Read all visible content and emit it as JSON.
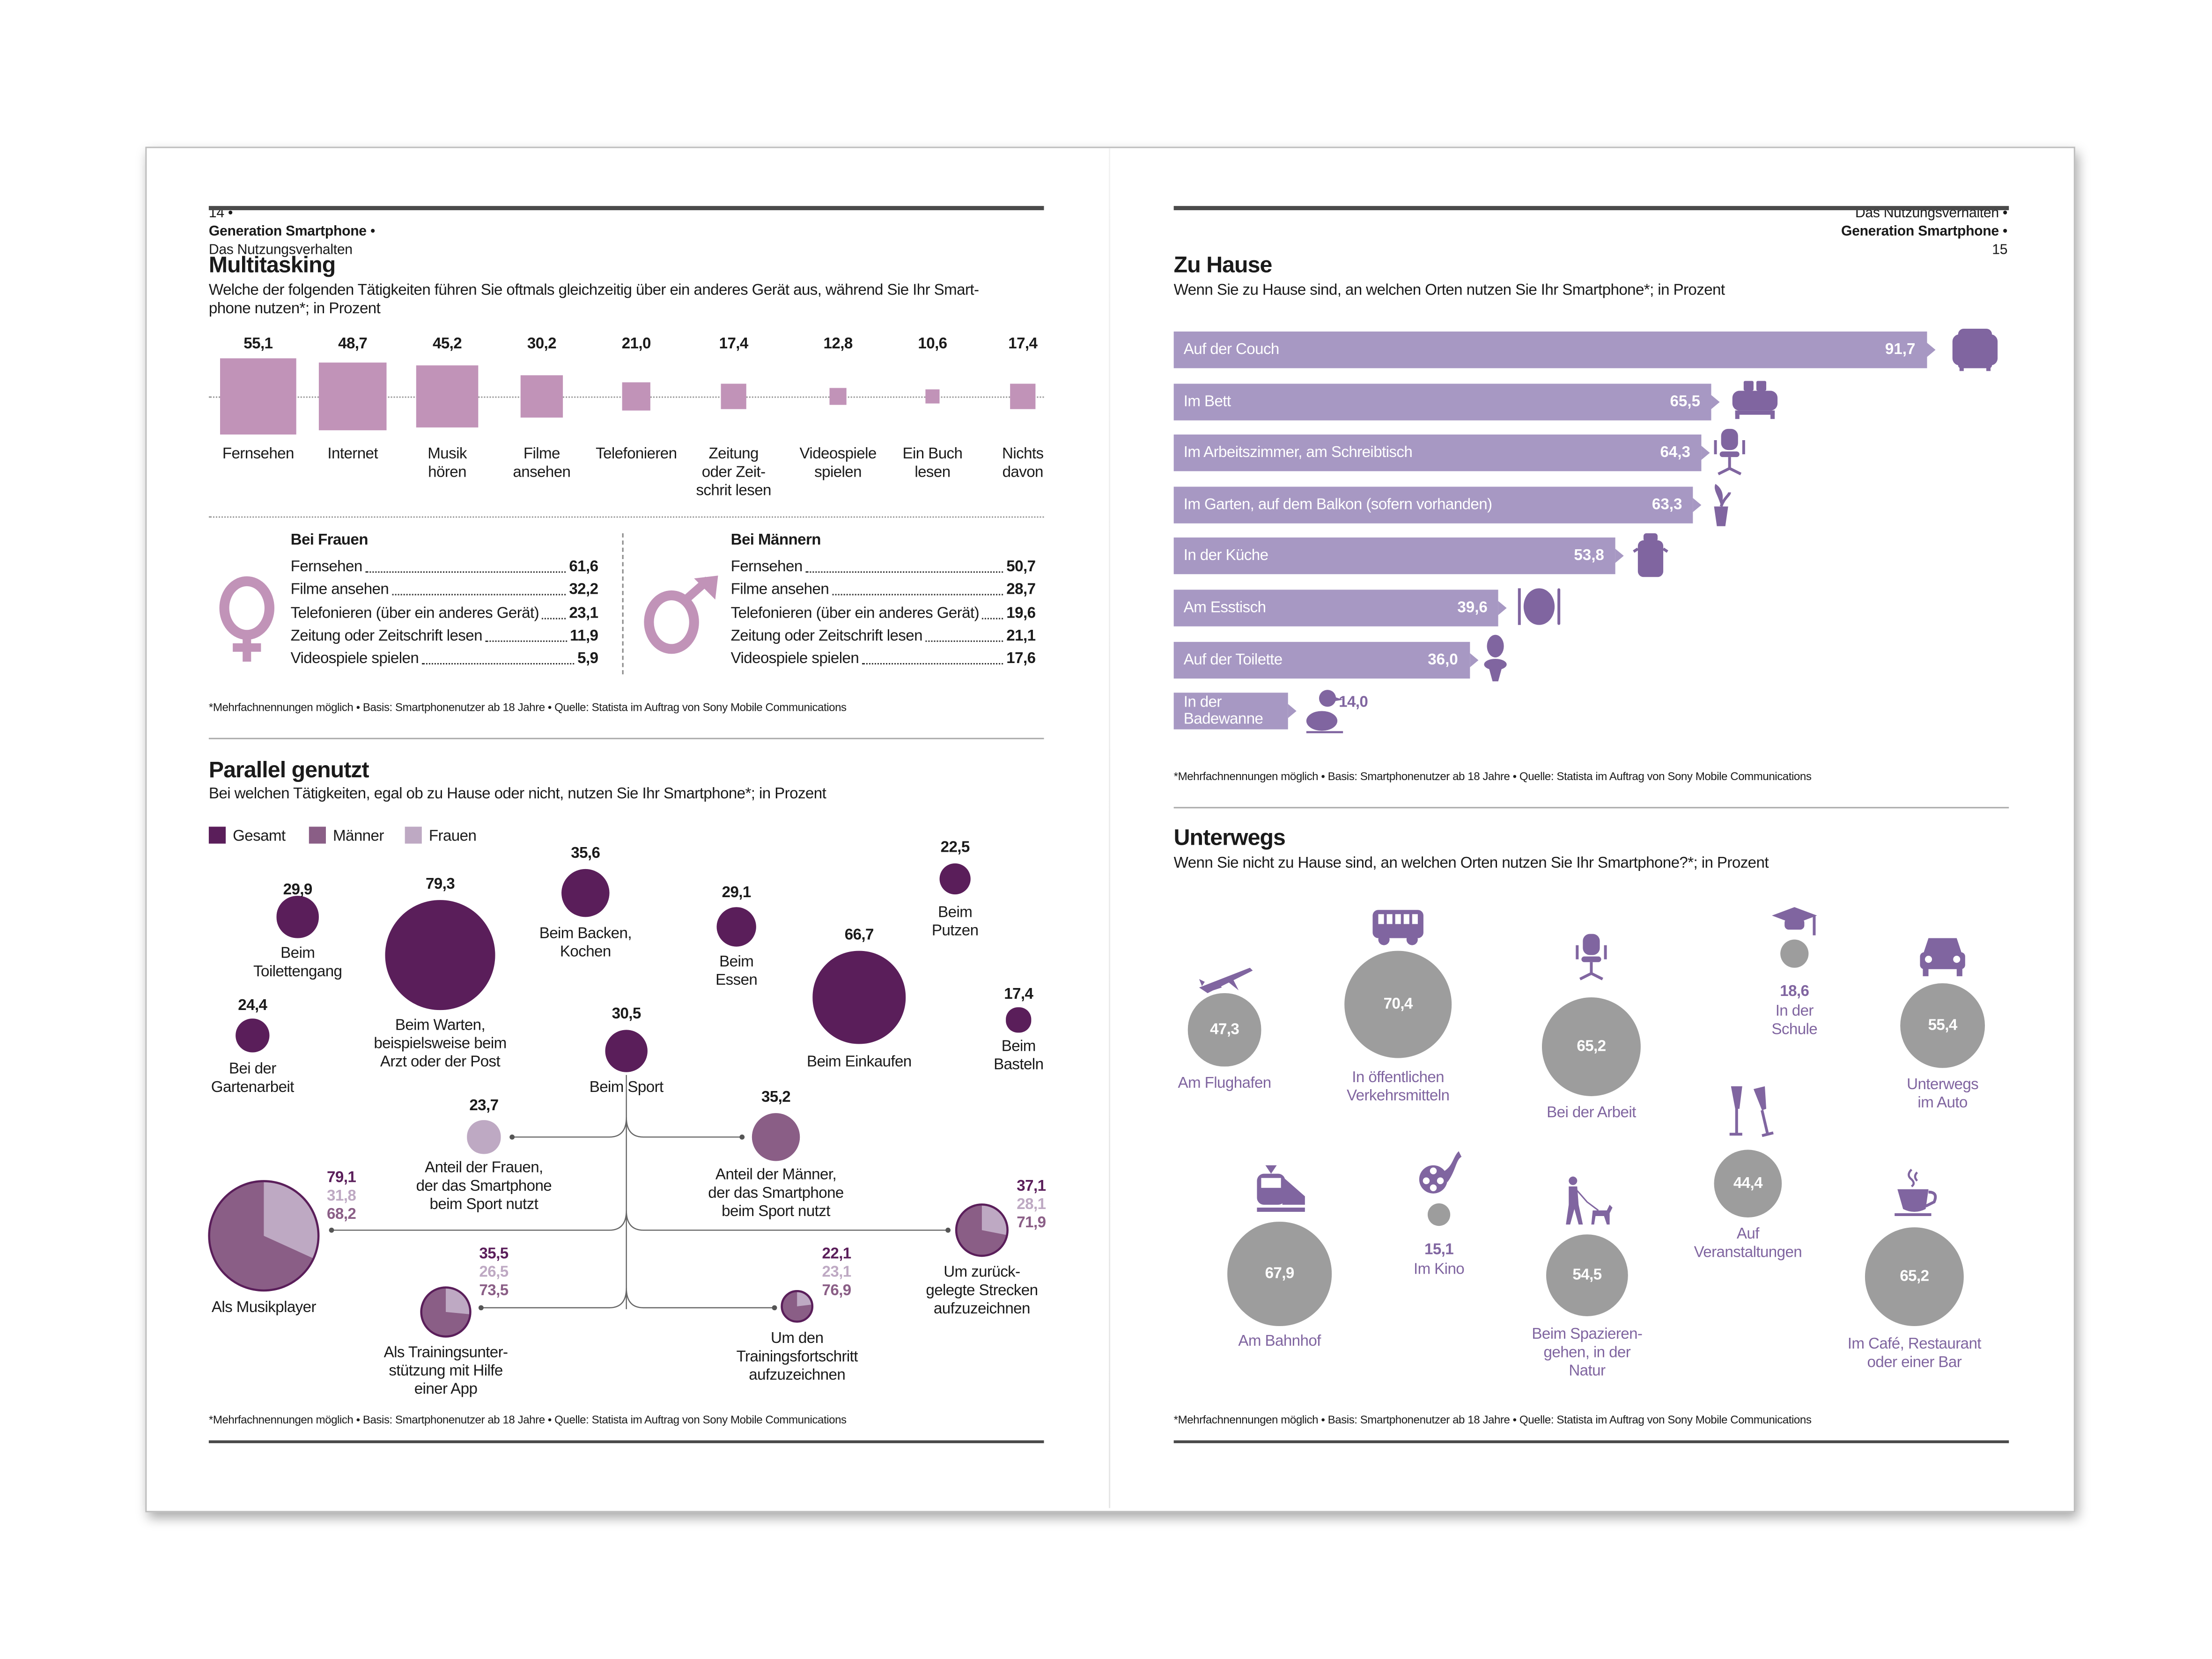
{
  "left_page": {
    "header": {
      "page_number": "14",
      "publication": "Generation Smartphone",
      "section": "Das Nutzungsverhalten"
    },
    "multitasking": {
      "title": "Multitasking",
      "subtitle": "Welche der folgenden Tätigkeiten führen Sie oftmals gleichzeitig über ein anderes Gerät aus, während Sie Ihr Smart-\nphone nutzen*; in Prozent",
      "women": {
        "heading": "Bei Frauen",
        "rows": [
          {
            "label": "Fernsehen",
            "value": "61,6"
          },
          {
            "label": "Filme ansehen",
            "value": "32,2"
          },
          {
            "label": "Telefonieren (über ein anderes Gerät)",
            "value": "23,1"
          },
          {
            "label": "Zeitung oder Zeitschrift lesen",
            "value": "11,9"
          },
          {
            "label": "Videospiele spielen",
            "value": "5,9"
          }
        ]
      },
      "men": {
        "heading": "Bei Männern",
        "rows": [
          {
            "label": "Fernsehen",
            "value": "50,7"
          },
          {
            "label": "Filme ansehen",
            "value": "28,7"
          },
          {
            "label": "Telefonieren (über ein anderes Gerät)",
            "value": "19,6"
          },
          {
            "label": "Zeitung oder Zeitschrift lesen",
            "value": "21,1"
          },
          {
            "label": "Videospiele spielen",
            "value": "17,6"
          }
        ]
      },
      "footnote": "*Mehrfachnennungen möglich • Basis: Smartphonenutzer ab 18 Jahre • Quelle: Statista im Auftrag von Sony Mobile Communications"
    },
    "parallel": {
      "title": "Parallel genutzt",
      "subtitle": "Bei welchen Tätigkeiten, egal ob zu Hause oder nicht, nutzen Sie Ihr Smartphone*; in Prozent",
      "footnote": "*Mehrfachnennungen möglich • Basis: Smartphonenutzer ab 18 Jahre • Quelle: Statista im Auftrag von Sony Mobile Communications"
    }
  },
  "right_page": {
    "header": {
      "section": "Das Nutzungsverhalten",
      "publication": "Generation Smartphone",
      "page_number": "15"
    },
    "zu_hause": {
      "title": "Zu Hause",
      "subtitle": "Wenn Sie zu Hause sind, an welchen Orten nutzen Sie Ihr Smartphone*; in Prozent",
      "footnote": "*Mehrfachnennungen möglich • Basis: Smartphonenutzer ab 18 Jahre • Quelle: Statista im Auftrag von Sony Mobile Communications"
    },
    "unterwegs": {
      "title": "Unterwegs",
      "subtitle": "Wenn Sie nicht zu Hause sind, an welchen Orten nutzen Sie Ihr Smartphone?*; in Prozent",
      "footnote": "*Mehrfachnennungen möglich • Basis: Smartphonenutzer ab 18 Jahre • Quelle: Statista im Auftrag von Sony Mobile Communications"
    }
  },
  "colors": {
    "multitasking_bar": "#c193b8",
    "gesamt": "#5a1e5a",
    "maenner": "#8a5e86",
    "frauen": "#bea9c3",
    "zu_hause_bar": "#a798c3",
    "icon": "#8065a0",
    "unterwegs_circle": "#9d9d9d",
    "header_rule": "#4a4a4a"
  },
  "chart_data": [
    {
      "id": "multitasking",
      "type": "bar",
      "categories": [
        "Fernsehen",
        "Internet",
        "Musik\nhören",
        "Filme\nansehen",
        "Telefonieren",
        "Zeitung\noder Zeit-\nschrit lesen",
        "Videospiele\nspielen",
        "Ein Buch\nlesen",
        "Nichts\ndavon"
      ],
      "values": [
        55.1,
        48.7,
        45.2,
        30.2,
        21.0,
        17.4,
        12.8,
        10.6,
        17.4
      ],
      "labels": [
        "55,1",
        "48,7",
        "45,2",
        "30,2",
        "21,0",
        "17,4",
        "12,8",
        "10,6",
        "17,4"
      ]
    },
    {
      "id": "parallel",
      "type": "scatter",
      "legend": [
        {
          "name": "Gesamt",
          "color": "#5a1e5a"
        },
        {
          "name": "Männer",
          "color": "#8a5e86"
        },
        {
          "name": "Frauen",
          "color": "#bea9c3"
        }
      ],
      "legend_position": "top-left",
      "bubbles": [
        {
          "label": "Beim\nToilettengang",
          "value": 29.9,
          "text": "29,9"
        },
        {
          "label": "Beim Warten,\nbeispielsweise beim\nArzt oder der Post",
          "value": 79.3,
          "text": "79,3"
        },
        {
          "label": "Beim Backen,\nKochen",
          "value": 35.6,
          "text": "35,6"
        },
        {
          "label": "Beim\nEssen",
          "value": 29.1,
          "text": "29,1"
        },
        {
          "label": "Beim Einkaufen",
          "value": 66.7,
          "text": "66,7"
        },
        {
          "label": "Beim\nPutzen",
          "value": 22.5,
          "text": "22,5"
        },
        {
          "label": "Bei der\nGartenarbeit",
          "value": 24.4,
          "text": "24,4"
        },
        {
          "label": "Beim Sport",
          "value": 30.5,
          "text": "30,5"
        },
        {
          "label": "Beim\nBasteln",
          "value": 17.4,
          "text": "17,4"
        }
      ],
      "sport_share": [
        {
          "label": "Anteil der Frauen,\nder das Smartphone\nbeim Sport nutzt",
          "value": 23.7,
          "text": "23,7",
          "group": "Frauen"
        },
        {
          "label": "Anteil der Männer,\nder das Smartphone\nbeim Sport nutzt",
          "value": 35.2,
          "text": "35,2",
          "group": "Männer"
        }
      ],
      "sport_uses": [
        {
          "label": "Als Musikplayer",
          "gesamt": 79.1,
          "frauen": 31.8,
          "maenner": 68.2,
          "texts": [
            "79,1",
            "31,8",
            "68,2"
          ]
        },
        {
          "label": "Als Trainingsunter-\nstützung mit Hilfe\neiner App",
          "gesamt": 35.5,
          "frauen": 26.5,
          "maenner": 73.5,
          "texts": [
            "35,5",
            "26,5",
            "73,5"
          ]
        },
        {
          "label": "Um den\nTrainingsfortschritt\naufzuzeichnen",
          "gesamt": 22.1,
          "frauen": 23.1,
          "maenner": 76.9,
          "texts": [
            "22,1",
            "23,1",
            "76,9"
          ]
        },
        {
          "label": "Um zurück-\ngelegte Strecken\naufzuzeichnen",
          "gesamt": 37.1,
          "frauen": 28.1,
          "maenner": 71.9,
          "texts": [
            "37,1",
            "28,1",
            "71,9"
          ]
        }
      ]
    },
    {
      "id": "zu_hause",
      "type": "bar",
      "orientation": "horizontal",
      "categories": [
        "Auf der Couch",
        "Im Bett",
        "Im Arbeitszimmer, am Schreibtisch",
        "Im Garten, auf dem Balkon (sofern vorhanden)",
        "In der Küche",
        "Am Esstisch",
        "Auf der Toilette",
        "In der\nBadewanne"
      ],
      "values": [
        91.7,
        65.5,
        64.3,
        63.3,
        53.8,
        39.6,
        36.0,
        14.0
      ],
      "labels": [
        "91,7",
        "65,5",
        "64,3",
        "63,3",
        "53,8",
        "39,6",
        "36,0",
        "14,0"
      ],
      "icons": [
        "armchair-icon",
        "bed-icon",
        "office-chair-icon",
        "potted-plant-icon",
        "cooking-pot-icon",
        "plate-cutlery-icon",
        "toilet-icon",
        "rubber-duck-icon"
      ]
    },
    {
      "id": "unterwegs",
      "type": "scatter",
      "bubbles": [
        {
          "label": "Am Flughafen",
          "value": 47.3,
          "text": "47,3",
          "icon": "airplane-icon"
        },
        {
          "label": "In öffentlichen\nVerkehrsmitteln",
          "value": 70.4,
          "text": "70,4",
          "icon": "bus-icon"
        },
        {
          "label": "Bei der Arbeit",
          "value": 65.2,
          "text": "65,2",
          "icon": "office-chair-icon"
        },
        {
          "label": "In der\nSchule",
          "value": 18.6,
          "text": "18,6",
          "icon": "graduation-cap-icon"
        },
        {
          "label": "Unterwegs\nim Auto",
          "value": 55.4,
          "text": "55,4",
          "icon": "car-icon"
        },
        {
          "label": "Am Bahnhof",
          "value": 67.9,
          "text": "67,9",
          "icon": "train-icon"
        },
        {
          "label": "Im Kino",
          "value": 15.1,
          "text": "15,1",
          "icon": "film-reel-icon"
        },
        {
          "label": "Beim Spazieren-\ngehen, in der\nNatur",
          "value": 54.5,
          "text": "54,5",
          "icon": "dog-walker-icon"
        },
        {
          "label": "Auf\nVeranstaltungen",
          "value": 44.4,
          "text": "44,4",
          "icon": "champagne-glasses-icon"
        },
        {
          "label": "Im Café, Restaurant\noder einer Bar",
          "value": 65.2,
          "text": "65,2",
          "icon": "coffee-cup-icon"
        }
      ]
    }
  ]
}
